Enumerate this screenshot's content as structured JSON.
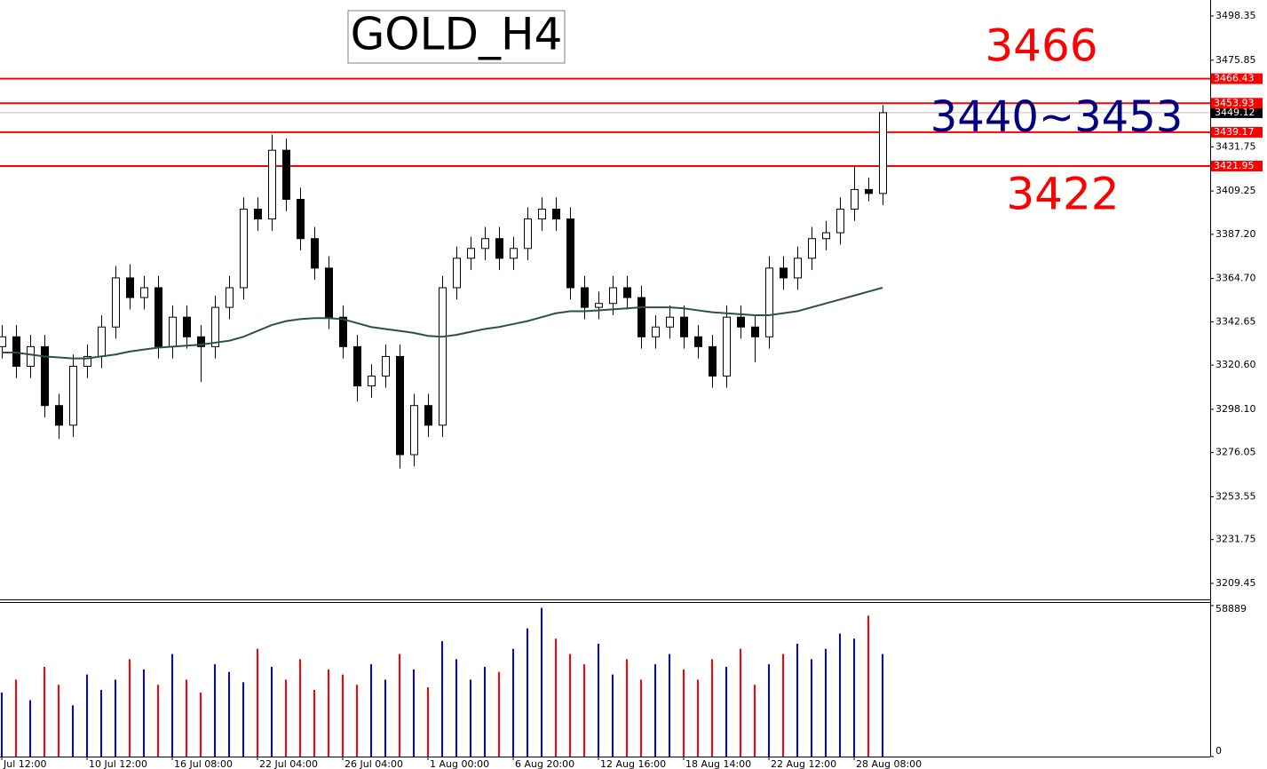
{
  "chart_data": [
    {
      "type": "candlestick",
      "title": "GOLD_H4",
      "categories": [
        "Jul 12:00",
        null,
        null,
        null,
        null,
        null,
        "10 Jul 12:00",
        null,
        null,
        null,
        null,
        null,
        "16 Jul 08:00",
        null,
        null,
        null,
        null,
        null,
        "22 Jul 04:00",
        null,
        null,
        null,
        null,
        null,
        "26 Jul 04:00",
        null,
        null,
        null,
        null,
        null,
        "1 Aug 00:00",
        null,
        null,
        null,
        null,
        null,
        "6 Aug 20:00",
        null,
        null,
        null,
        null,
        null,
        "12 Aug 16:00",
        null,
        null,
        null,
        null,
        null,
        "18 Aug 14:00",
        null,
        null,
        null,
        null,
        null,
        "22 Aug 12:00",
        null,
        null,
        null,
        null,
        null,
        "28 Aug 08:00",
        null,
        null
      ],
      "open": [
        3330,
        3335,
        3320,
        3330,
        3300,
        3290,
        3320,
        3325,
        3340,
        3365,
        3355,
        3360,
        3330,
        3345,
        3335,
        3330,
        3350,
        3360,
        3400,
        3395,
        3430,
        3405,
        3385,
        3370,
        3345,
        3330,
        3310,
        3315,
        3325,
        3275,
        3300,
        3290,
        3360,
        3375,
        3380,
        3385,
        3375,
        3380,
        3395,
        3400,
        3395,
        3360,
        3350,
        3352,
        3360,
        3355,
        3335,
        3340,
        3345,
        3335,
        3330,
        3315,
        3345,
        3340,
        3335,
        3370,
        3365,
        3375,
        3385,
        3388,
        3400,
        3410,
        3408
      ],
      "high": [
        3341,
        3341,
        3336,
        3336,
        3306,
        3326,
        3331,
        3346,
        3371,
        3372,
        3366,
        3366,
        3351,
        3351,
        3341,
        3356,
        3366,
        3406,
        3406,
        3438,
        3436,
        3411,
        3391,
        3376,
        3351,
        3336,
        3321,
        3331,
        3331,
        3306,
        3306,
        3366,
        3381,
        3386,
        3391,
        3391,
        3386,
        3401,
        3406,
        3406,
        3401,
        3366,
        3358,
        3366,
        3366,
        3361,
        3346,
        3351,
        3351,
        3341,
        3336,
        3351,
        3351,
        3346,
        3376,
        3376,
        3381,
        3391,
        3394,
        3406,
        3422,
        3416,
        3453
      ],
      "low": [
        3324,
        3314,
        3314,
        3294,
        3283,
        3284,
        3314,
        3319,
        3334,
        3349,
        3349,
        3324,
        3324,
        3329,
        3312,
        3324,
        3344,
        3354,
        3389,
        3389,
        3399,
        3379,
        3364,
        3339,
        3324,
        3302,
        3304,
        3309,
        3268,
        3269,
        3284,
        3284,
        3354,
        3369,
        3374,
        3369,
        3369,
        3374,
        3389,
        3389,
        3354,
        3344,
        3344,
        3346,
        3349,
        3329,
        3329,
        3334,
        3329,
        3324,
        3309,
        3309,
        3334,
        3322,
        3329,
        3359,
        3359,
        3369,
        3379,
        3382,
        3394,
        3404,
        3402
      ],
      "close": [
        3335,
        3320,
        3330,
        3300,
        3290,
        3320,
        3325,
        3340,
        3365,
        3355,
        3360,
        3330,
        3345,
        3335,
        3330,
        3350,
        3360,
        3400,
        3395,
        3430,
        3405,
        3385,
        3370,
        3345,
        3330,
        3310,
        3315,
        3325,
        3275,
        3300,
        3290,
        3360,
        3375,
        3380,
        3385,
        3375,
        3380,
        3395,
        3400,
        3395,
        3360,
        3350,
        3352,
        3360,
        3355,
        3335,
        3340,
        3345,
        3335,
        3330,
        3315,
        3345,
        3340,
        3335,
        3370,
        3365,
        3375,
        3385,
        3388,
        3400,
        3410,
        3408,
        3449.12
      ],
      "ma": [
        3327,
        3327,
        3326,
        3325,
        3324.5,
        3324,
        3324,
        3325,
        3326,
        3327.5,
        3328.5,
        3329.5,
        3330,
        3330.5,
        3331,
        3332,
        3333,
        3335,
        3338,
        3341,
        3343,
        3344,
        3344.5,
        3344.5,
        3344,
        3342,
        3340,
        3339,
        3338,
        3337,
        3335.5,
        3335,
        3336,
        3337.5,
        3339,
        3340,
        3341.5,
        3343,
        3345,
        3347,
        3348,
        3348,
        3348.5,
        3349,
        3349.5,
        3350,
        3350,
        3350,
        3349.5,
        3348.5,
        3347.5,
        3347,
        3346.5,
        3346,
        3346,
        3347,
        3348,
        3350,
        3352,
        3354,
        3356,
        3358,
        3360
      ],
      "ma_color": "#2f4f4f",
      "up_color": "#ffffff",
      "down_color": "#000000",
      "ylim": [
        3201.3,
        3506.5
      ],
      "yticks": [
        3498.35,
        3475.85,
        3431.75,
        3409.25,
        {
          "value": 3387.2,
          "label": "3387.20"
        },
        {
          "value": 3364.7,
          "label": "3364.70"
        },
        3342.65,
        {
          "value": 3320.6,
          "label": "3320.60"
        },
        {
          "value": 3298.1,
          "label": "3298.10"
        },
        3276.05,
        3253.55,
        3231.75,
        3209.45
      ],
      "hlines": {
        "color": "#ff0000",
        "values": [
          3466.43,
          3453.93,
          3439.17,
          3421.95
        ]
      },
      "last_price": 3449.12,
      "last_price_color": "#c0c0c0",
      "annotations": [
        {
          "text": "3466",
          "color": "#ff0000"
        },
        {
          "text": "3440~3453",
          "color": "#000080"
        },
        {
          "text": "3422",
          "color": "#ff0000"
        }
      ]
    },
    {
      "type": "bar",
      "values": [
        25000,
        30000,
        22000,
        35000,
        28000,
        20000,
        32000,
        26000,
        30000,
        38000,
        34000,
        28000,
        40000,
        30000,
        25000,
        36000,
        33000,
        29000,
        42000,
        35000,
        30000,
        38000,
        26000,
        34000,
        32000,
        28000,
        36000,
        30000,
        40000,
        34000,
        27000,
        45000,
        38000,
        30000,
        35000,
        33000,
        42000,
        50000,
        58000,
        46000,
        40000,
        36000,
        44000,
        32000,
        38000,
        30000,
        36000,
        40000,
        34000,
        30000,
        38000,
        35000,
        42000,
        28000,
        36000,
        40000,
        44000,
        38000,
        42000,
        48000,
        46000,
        55000,
        40000
      ],
      "colors": {
        "up": "#0000ff",
        "down": "#ff0000"
      },
      "ylim": [
        0,
        58889
      ],
      "yticks": [
        58889,
        0
      ]
    }
  ]
}
